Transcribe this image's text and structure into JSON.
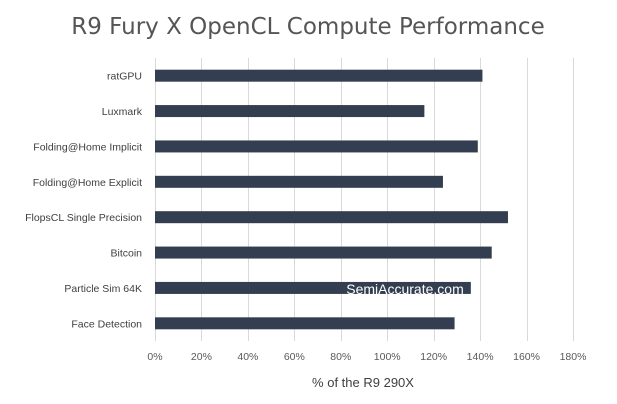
{
  "chart_data": {
    "type": "bar",
    "orientation": "horizontal",
    "title": "R9 Fury X OpenCL Compute Performance",
    "xlabel": "% of the R9 290X",
    "ylabel": "",
    "categories": [
      "ratGPU",
      "Luxmark",
      "Folding@Home Implicit",
      "Folding@Home Explicit",
      "FlopsCL Single Precision",
      "Bitcoin",
      "Particle Sim 64K",
      "Face Detection"
    ],
    "values": [
      1.41,
      1.16,
      1.39,
      1.24,
      1.52,
      1.45,
      1.36,
      1.29
    ],
    "xlim": [
      0,
      1.8
    ],
    "xticks": [
      0,
      0.2,
      0.4,
      0.6,
      0.8,
      1.0,
      1.2,
      1.4,
      1.6,
      1.8
    ],
    "xtick_labels": [
      "0%",
      "20%",
      "40%",
      "60%",
      "80%",
      "100%",
      "120%",
      "140%",
      "160%",
      "180%"
    ],
    "grid": "vertical",
    "legend": "none",
    "bar_color": "#333f50",
    "grid_color": "#d9d9d9",
    "watermark": "SemiAccurate.com"
  }
}
